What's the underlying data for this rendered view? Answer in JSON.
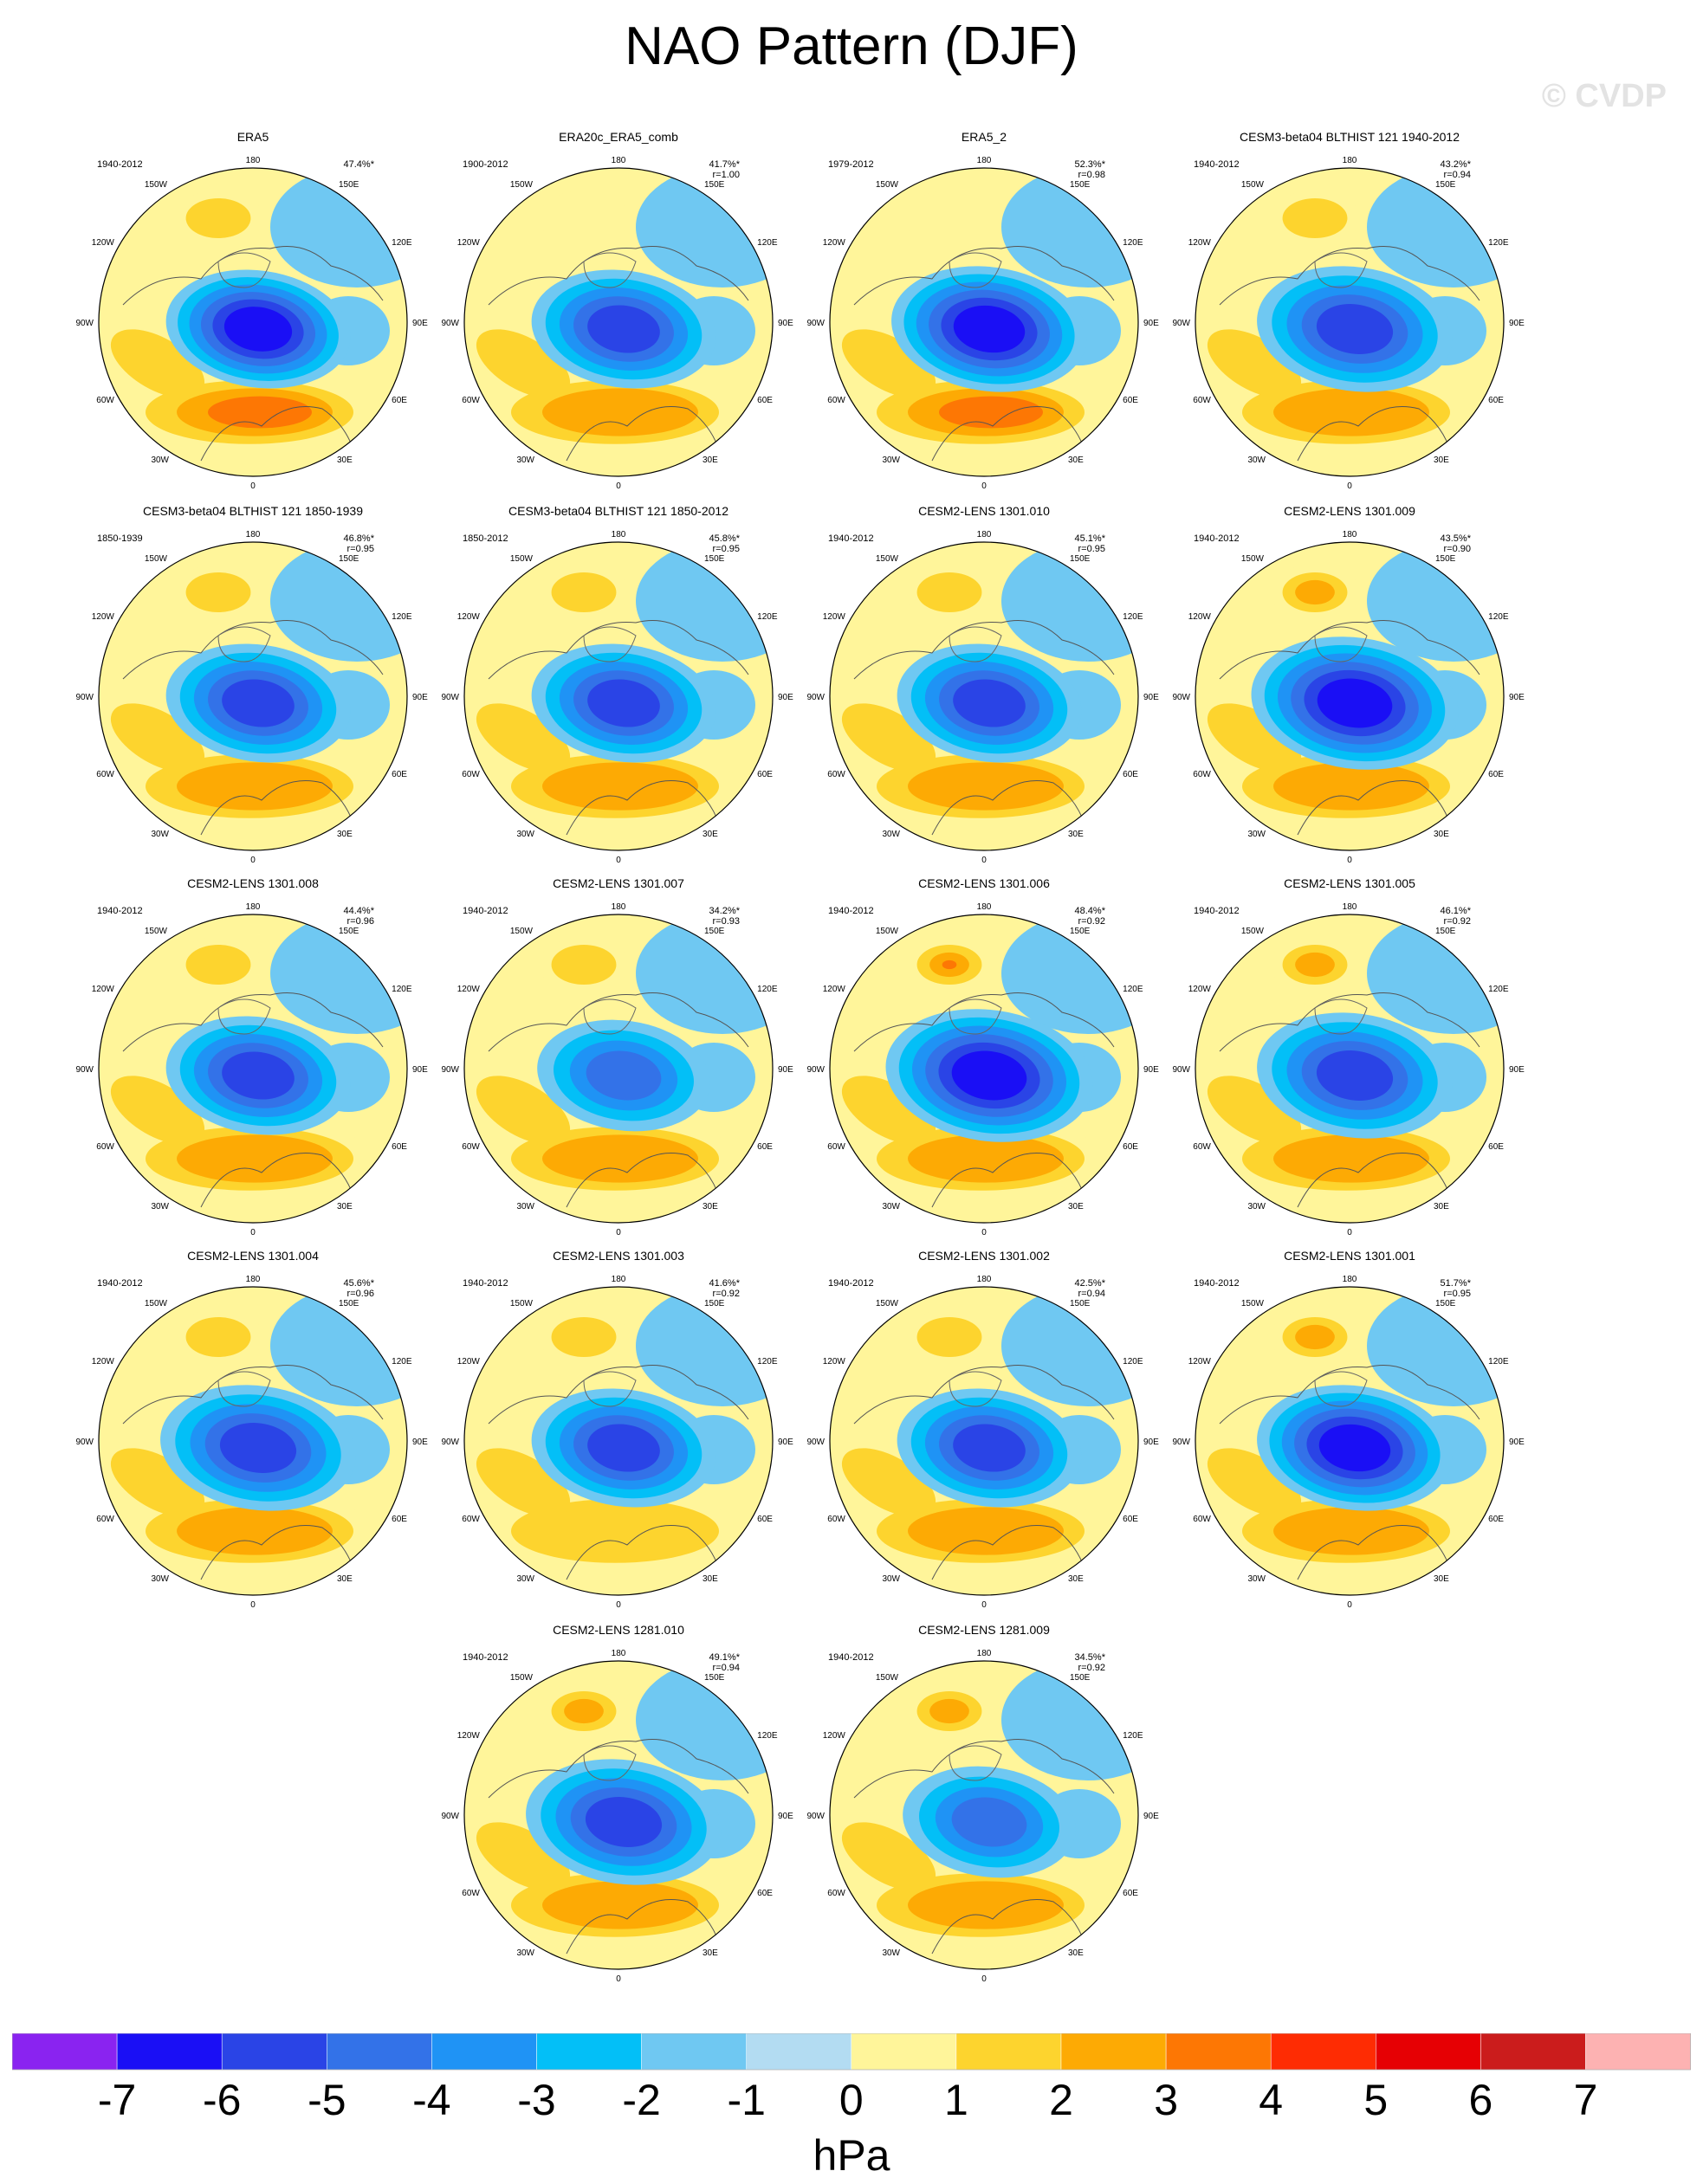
{
  "header": {
    "title": "NAO Pattern (DJF)",
    "watermark": "© CVDP"
  },
  "map_labels": {
    "top": "180",
    "bottom": "0",
    "left_top": "150W",
    "right_top": "150E",
    "left_upper": "120W",
    "right_upper": "120E",
    "left_mid": "90W",
    "right_mid": "90E",
    "left_lower": "60W",
    "right_lower": "60E",
    "left_bottom": "30W",
    "right_bottom": "30E"
  },
  "panels": [
    {
      "name": "ERA5",
      "period": "1940-2012",
      "pct": "47.4%*",
      "r": "",
      "low": -6,
      "az": 1.0,
      "ext": 0.75,
      "hi": 4,
      "pac": 2
    },
    {
      "name": "ERA20c_ERA5_comb",
      "period": "1900-2012",
      "pct": "41.7%*",
      "r": "r=1.00",
      "low": -5,
      "az": 0.9,
      "ext": 0.75,
      "hi": 3,
      "pac": 1
    },
    {
      "name": "ERA5_2",
      "period": "1979-2012",
      "pct": "52.3%*",
      "r": "r=0.98",
      "low": -6,
      "az": 1.0,
      "ext": 0.8,
      "hi": 4,
      "pac": 1
    },
    {
      "name": "CESM3-beta04 BLTHIST 121 1940-2012",
      "period": "1940-2012",
      "pct": "43.2%*",
      "r": "r=0.94",
      "low": -5,
      "az": 0.9,
      "ext": 0.8,
      "hi": 3,
      "pac": 2
    },
    {
      "name": "CESM3-beta04 BLTHIST 121 1850-1939",
      "period": "1850-1939",
      "pct": "46.8%*",
      "r": "r=0.95",
      "low": -5,
      "az": 0.95,
      "ext": 0.75,
      "hi": 3,
      "pac": 2
    },
    {
      "name": "CESM3-beta04 BLTHIST 121 1850-2012",
      "period": "1850-2012",
      "pct": "45.8%*",
      "r": "r=0.95",
      "low": -5,
      "az": 0.95,
      "ext": 0.75,
      "hi": 3,
      "pac": 2
    },
    {
      "name": "CESM2-LENS 1301.010",
      "period": "1940-2012",
      "pct": "45.1%*",
      "r": "r=0.95",
      "low": -5,
      "az": 0.9,
      "ext": 0.75,
      "hi": 3,
      "pac": 2
    },
    {
      "name": "CESM2-LENS 1301.009",
      "period": "1940-2012",
      "pct": "43.5%*",
      "r": "r=0.90",
      "low": -6,
      "az": 0.9,
      "ext": 0.85,
      "hi": 3,
      "pac": 3
    },
    {
      "name": "CESM2-LENS 1301.008",
      "period": "1940-2012",
      "pct": "44.4%*",
      "r": "r=0.96",
      "low": -5,
      "az": 0.95,
      "ext": 0.75,
      "hi": 3,
      "pac": 2
    },
    {
      "name": "CESM2-LENS 1301.007",
      "period": "1940-2012",
      "pct": "34.2%*",
      "r": "r=0.93",
      "low": -4,
      "az": 0.85,
      "ext": 0.7,
      "hi": 3,
      "pac": 2
    },
    {
      "name": "CESM2-LENS 1301.006",
      "period": "1940-2012",
      "pct": "48.4%*",
      "r": "r=0.92",
      "low": -6,
      "az": 0.95,
      "ext": 0.85,
      "hi": 3,
      "pac": 4
    },
    {
      "name": "CESM2-LENS 1301.005",
      "period": "1940-2012",
      "pct": "46.1%*",
      "r": "r=0.92",
      "low": -5,
      "az": 0.95,
      "ext": 0.8,
      "hi": 3,
      "pac": 3
    },
    {
      "name": "CESM2-LENS 1301.004",
      "period": "1940-2012",
      "pct": "45.6%*",
      "r": "r=0.96",
      "low": -5,
      "az": 0.95,
      "ext": 0.8,
      "hi": 3,
      "pac": 2
    },
    {
      "name": "CESM2-LENS 1301.003",
      "period": "1940-2012",
      "pct": "41.6%*",
      "r": "r=0.92",
      "low": -5,
      "az": 0.9,
      "ext": 0.75,
      "hi": 2,
      "pac": 2
    },
    {
      "name": "CESM2-LENS 1301.002",
      "period": "1940-2012",
      "pct": "42.5%*",
      "r": "r=0.94",
      "low": -5,
      "az": 0.9,
      "ext": 0.75,
      "hi": 3,
      "pac": 2
    },
    {
      "name": "CESM2-LENS 1301.001",
      "period": "1940-2012",
      "pct": "51.7%*",
      "r": "r=0.95",
      "low": -6,
      "az": 0.95,
      "ext": 0.8,
      "hi": 3,
      "pac": 3
    },
    {
      "name": "CESM2-LENS 1281.010",
      "period": "1940-2012",
      "pct": "49.1%*",
      "r": "r=0.94",
      "low": -5,
      "az": 0.95,
      "ext": 0.8,
      "hi": 3,
      "pac": 3
    },
    {
      "name": "CESM2-LENS 1281.009",
      "period": "1940-2012",
      "pct": "34.5%*",
      "r": "r=0.92",
      "low": -4,
      "az": 0.85,
      "ext": 0.7,
      "hi": 3,
      "pac": 3
    }
  ],
  "colorbar": {
    "units": "hPa",
    "ticks": [
      "-7",
      "-6",
      "-5",
      "-4",
      "-3",
      "-2",
      "-1",
      "0",
      "1",
      "2",
      "3",
      "4",
      "5",
      "6",
      "7"
    ],
    "colors": [
      "#8a23f0",
      "#1a0ff5",
      "#2a44e6",
      "#3372e8",
      "#1f93f5",
      "#03bff7",
      "#6fc8f2",
      "#b3dcf2",
      "#fff59a",
      "#fdd42e",
      "#fdaa04",
      "#fd7704",
      "#fe2c03",
      "#e60004",
      "#cb1c1c",
      "#fdb2b2"
    ]
  }
}
